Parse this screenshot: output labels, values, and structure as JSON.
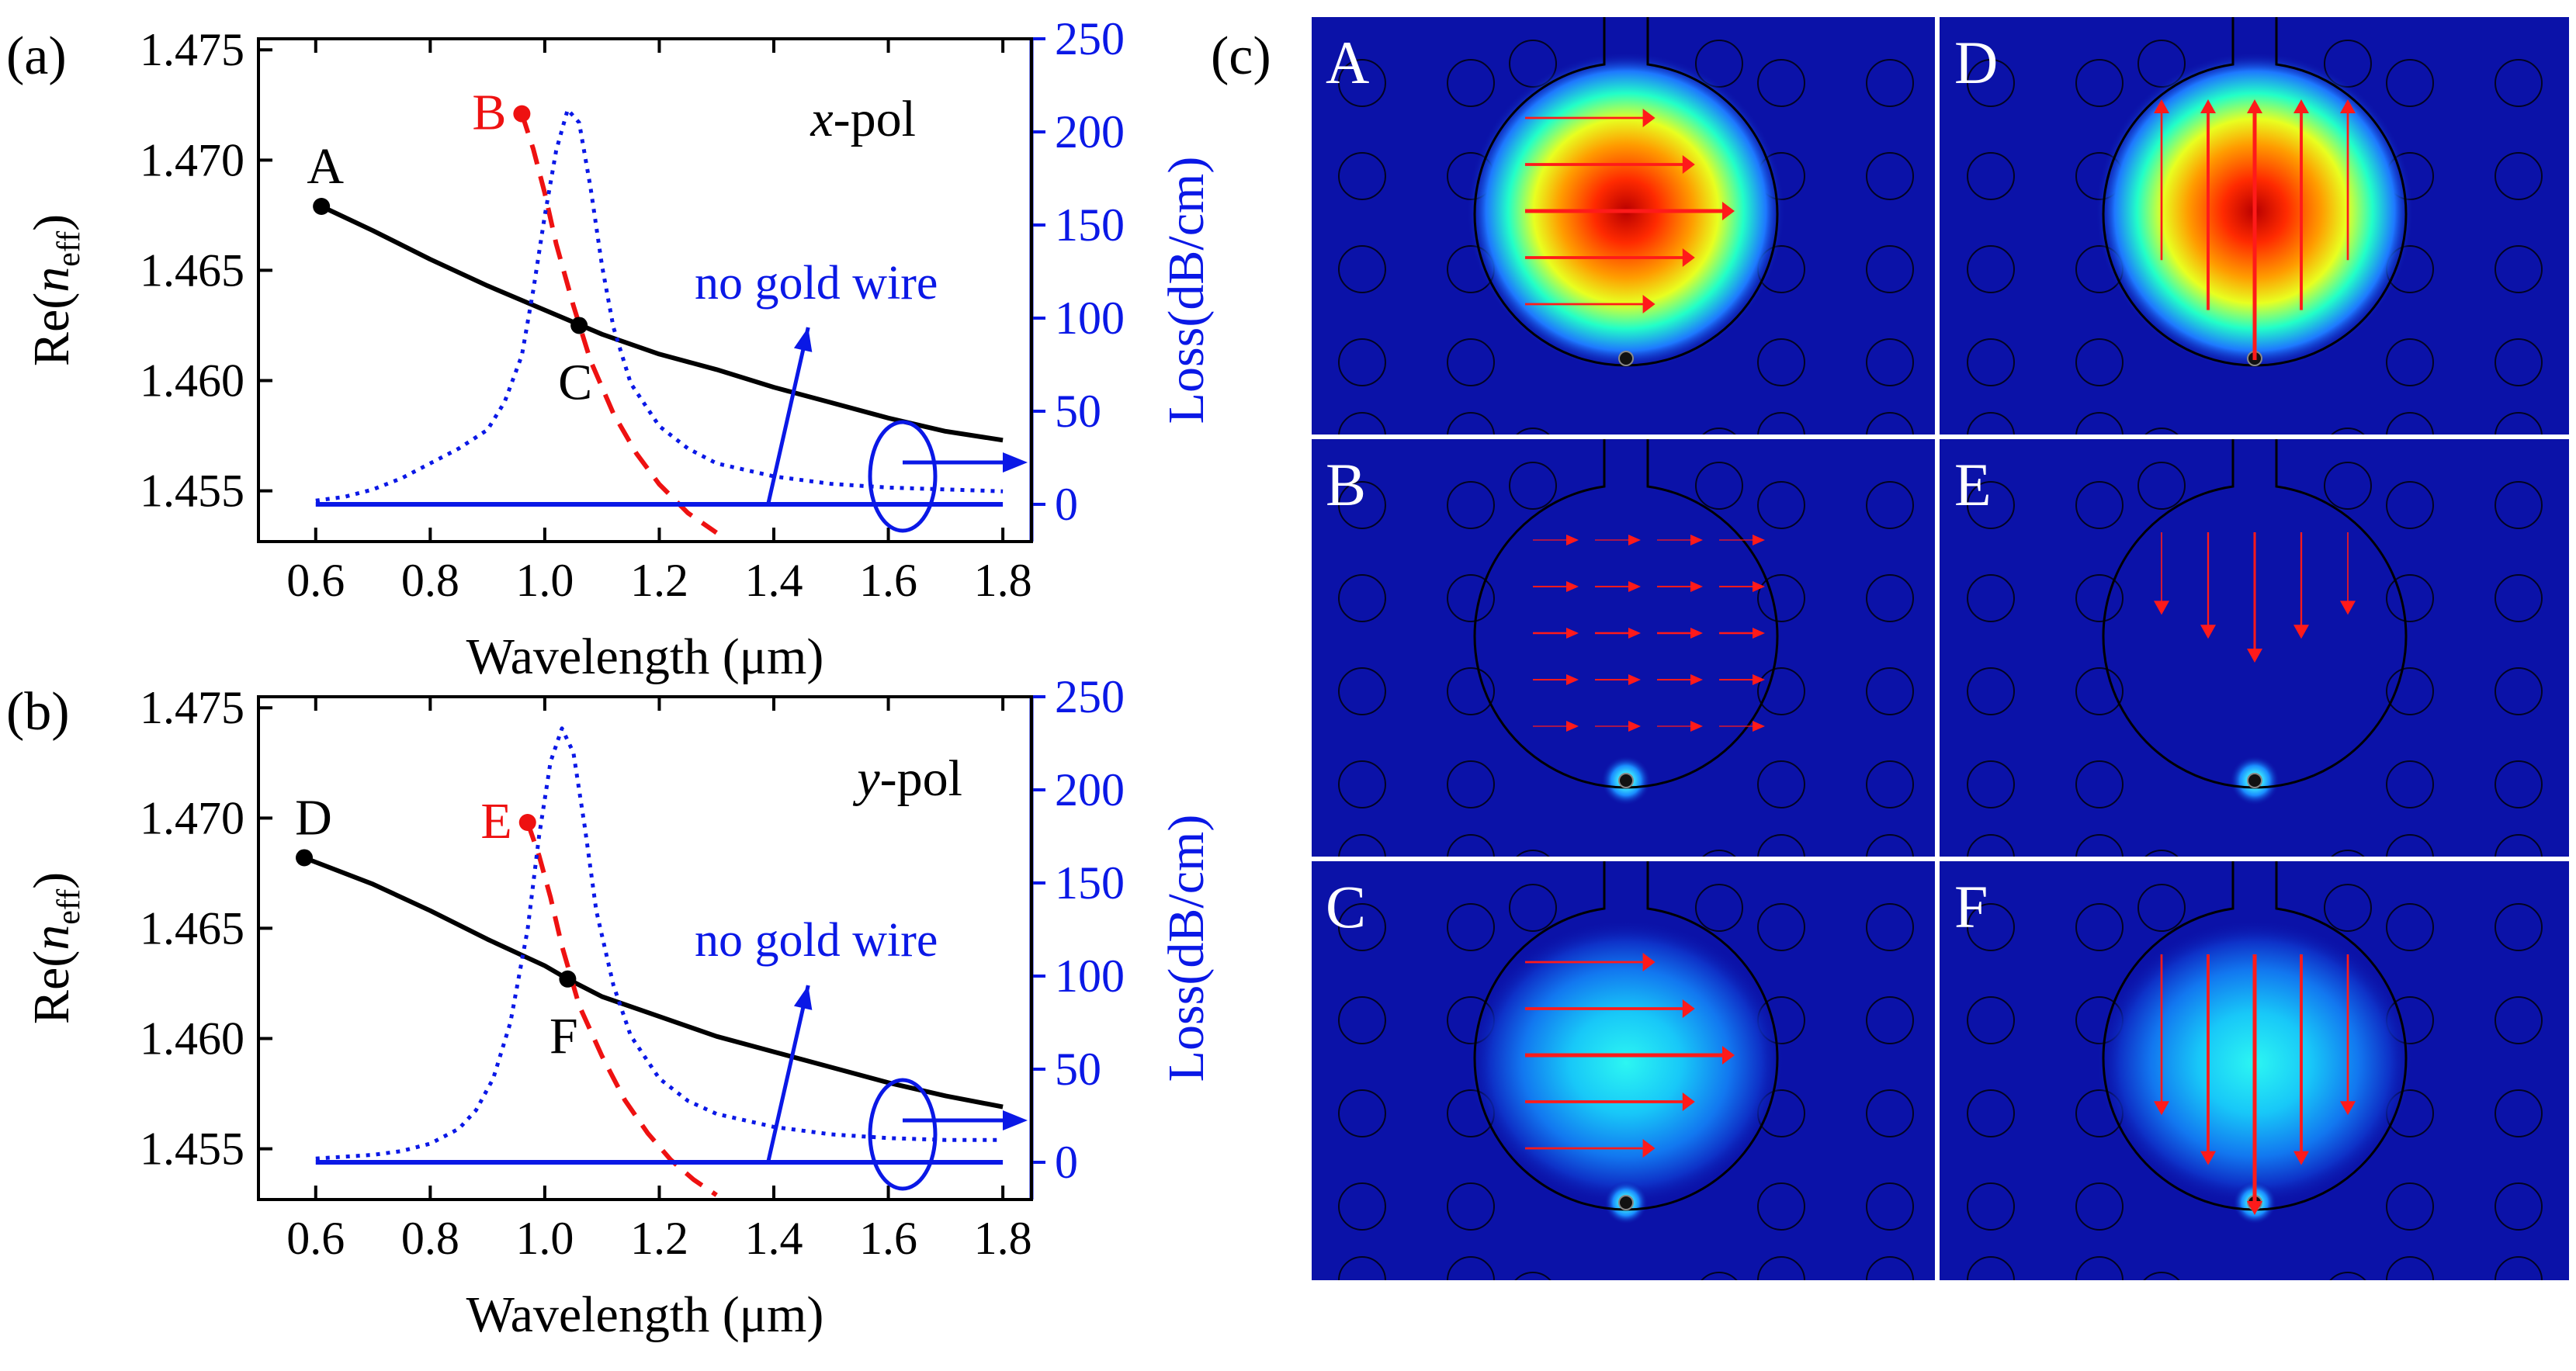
{
  "panels": {
    "a_label": "(a)",
    "b_label": "(b)",
    "c_label": "(c)"
  },
  "colors": {
    "neff_line": "#000000",
    "spp_line": "#ee1111",
    "loss_line": "#0a18e6",
    "field_bg": "#0b12a8",
    "arrow": "#ff1a1a"
  },
  "chart_data": [
    {
      "id": "a",
      "type": "line",
      "pol_prefix": "x",
      "pol_suffix": "-pol",
      "xlabel": "Wavelength (μm)",
      "ylabel_prefix": "Re(",
      "ylabel_n": "n",
      "ylabel_sub": "eff",
      "ylabel_suffix": ")",
      "y2label": "Loss(dB/cm)",
      "xlim": [
        0.5,
        1.85
      ],
      "ylim": [
        1.4527,
        1.4755
      ],
      "y2lim": [
        -20,
        250
      ],
      "xticks": [
        "0.6",
        "0.8",
        "1.0",
        "1.2",
        "1.4",
        "1.6",
        "1.8"
      ],
      "yticks": [
        "1.455",
        "1.460",
        "1.465",
        "1.470",
        "1.475"
      ],
      "y2ticks": [
        "0",
        "50",
        "100",
        "150",
        "200",
        "250"
      ],
      "annotation": "no gold wire",
      "series": [
        {
          "axis": "left",
          "style": "solid",
          "color_key": "neff_line",
          "x": [
            0.61,
            0.7,
            0.8,
            0.9,
            1.0,
            1.1,
            1.2,
            1.3,
            1.4,
            1.5,
            1.6,
            1.7,
            1.8
          ],
          "y": [
            1.4679,
            1.4668,
            1.4655,
            1.4643,
            1.4632,
            1.4621,
            1.4612,
            1.4605,
            1.4597,
            1.459,
            1.4583,
            1.4577,
            1.4573
          ]
        },
        {
          "axis": "left",
          "style": "dashed",
          "color_key": "spp_line",
          "x": [
            0.96,
            0.98,
            1.0,
            1.02,
            1.05,
            1.08,
            1.12,
            1.16,
            1.2,
            1.25,
            1.3
          ],
          "y": [
            1.4721,
            1.4705,
            1.4685,
            1.4662,
            1.4634,
            1.4609,
            1.4585,
            1.4567,
            1.4553,
            1.454,
            1.4531
          ]
        },
        {
          "axis": "right",
          "style": "dotted",
          "color_key": "loss_line",
          "x": [
            0.6,
            0.65,
            0.7,
            0.75,
            0.8,
            0.85,
            0.9,
            0.93,
            0.96,
            0.98,
            1.0,
            1.02,
            1.04,
            1.06,
            1.08,
            1.1,
            1.12,
            1.15,
            1.2,
            1.25,
            1.3,
            1.4,
            1.5,
            1.6,
            1.7,
            1.8
          ],
          "y": [
            2,
            4,
            8,
            14,
            22,
            30,
            40,
            55,
            80,
            115,
            155,
            190,
            212,
            205,
            170,
            128,
            95,
            65,
            42,
            30,
            22,
            15,
            11,
            9,
            8,
            7
          ]
        },
        {
          "axis": "right",
          "style": "solid",
          "color_key": "loss_line",
          "x": [
            0.6,
            1.8
          ],
          "y": [
            0,
            0
          ]
        }
      ],
      "markers": [
        {
          "label": "A",
          "x": 0.61,
          "y": 1.4679,
          "color_key": "neff_line",
          "label_side": "above"
        },
        {
          "label": "B",
          "x": 0.96,
          "y": 1.4721,
          "color_key": "spp_line",
          "label_side": "left"
        },
        {
          "label": "C",
          "x": 1.06,
          "y": 1.4625,
          "color_key": "neff_line",
          "label_side": "below"
        }
      ]
    },
    {
      "id": "b",
      "type": "line",
      "pol_prefix": "y",
      "pol_suffix": "-pol",
      "xlabel": "Wavelength (μm)",
      "ylabel_prefix": "Re(",
      "ylabel_n": "n",
      "ylabel_sub": "eff",
      "ylabel_suffix": ")",
      "y2label": "Loss(dB/cm)",
      "xlim": [
        0.5,
        1.85
      ],
      "ylim": [
        1.4527,
        1.4755
      ],
      "y2lim": [
        -20,
        250
      ],
      "xticks": [
        "0.6",
        "0.8",
        "1.0",
        "1.2",
        "1.4",
        "1.6",
        "1.8"
      ],
      "yticks": [
        "1.455",
        "1.460",
        "1.465",
        "1.470",
        "1.475"
      ],
      "y2ticks": [
        "0",
        "50",
        "100",
        "150",
        "200",
        "250"
      ],
      "annotation": "no gold wire",
      "series": [
        {
          "axis": "left",
          "style": "solid",
          "color_key": "neff_line",
          "x": [
            0.58,
            0.7,
            0.8,
            0.9,
            1.0,
            1.04,
            1.1,
            1.2,
            1.3,
            1.4,
            1.5,
            1.6,
            1.7,
            1.8
          ],
          "y": [
            1.4682,
            1.467,
            1.4658,
            1.4645,
            1.4633,
            1.4627,
            1.4619,
            1.461,
            1.4601,
            1.4594,
            1.4587,
            1.458,
            1.4574,
            1.4569
          ]
        },
        {
          "axis": "left",
          "style": "dashed",
          "color_key": "spp_line",
          "x": [
            0.97,
            0.99,
            1.01,
            1.03,
            1.06,
            1.1,
            1.14,
            1.18,
            1.22,
            1.26,
            1.3
          ],
          "y": [
            1.4698,
            1.4683,
            1.4664,
            1.4642,
            1.4615,
            1.4592,
            1.4572,
            1.4557,
            1.4545,
            1.4536,
            1.4529
          ]
        },
        {
          "axis": "right",
          "style": "dotted",
          "color_key": "loss_line",
          "x": [
            0.6,
            0.7,
            0.75,
            0.8,
            0.85,
            0.88,
            0.91,
            0.94,
            0.97,
            0.99,
            1.01,
            1.03,
            1.05,
            1.07,
            1.09,
            1.12,
            1.15,
            1.2,
            1.25,
            1.3,
            1.4,
            1.5,
            1.6,
            1.7,
            1.8
          ],
          "y": [
            2,
            4,
            6,
            10,
            18,
            28,
            45,
            75,
            125,
            175,
            215,
            233,
            220,
            180,
            135,
            95,
            68,
            45,
            33,
            26,
            19,
            15,
            13,
            12,
            12
          ]
        },
        {
          "axis": "right",
          "style": "solid",
          "color_key": "loss_line",
          "x": [
            0.6,
            1.8
          ],
          "y": [
            0,
            0
          ]
        }
      ],
      "markers": [
        {
          "label": "D",
          "x": 0.58,
          "y": 1.4682,
          "color_key": "neff_line",
          "label_side": "below-right"
        },
        {
          "label": "E",
          "x": 0.97,
          "y": 1.4698,
          "color_key": "spp_line",
          "label_side": "left"
        },
        {
          "label": "F",
          "x": 1.04,
          "y": 1.4627,
          "color_key": "neff_line",
          "label_side": "below"
        }
      ]
    }
  ],
  "field_panels": [
    {
      "label": "A",
      "mode": "core",
      "pol": "x",
      "intensity": "high"
    },
    {
      "label": "D",
      "mode": "core",
      "pol": "y",
      "intensity": "high"
    },
    {
      "label": "B",
      "mode": "spp",
      "pol": "x",
      "intensity": "low"
    },
    {
      "label": "E",
      "mode": "spp",
      "pol": "y",
      "intensity": "low"
    },
    {
      "label": "C",
      "mode": "hybrid",
      "pol": "x",
      "intensity": "medium"
    },
    {
      "label": "F",
      "mode": "hybrid",
      "pol": "y",
      "intensity": "medium"
    }
  ]
}
